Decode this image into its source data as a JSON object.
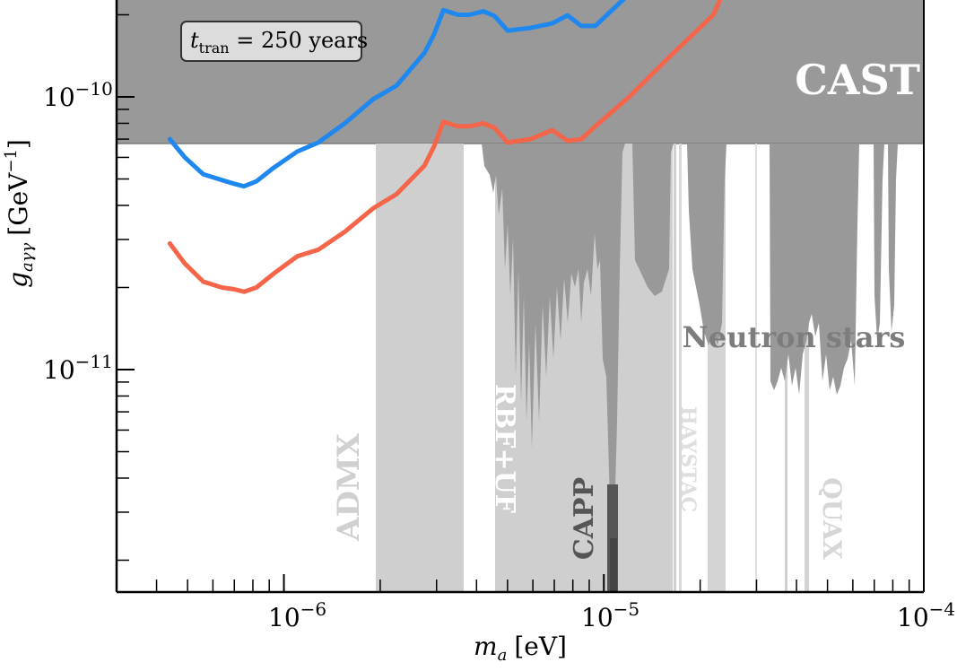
{
  "chart_data": {
    "type": "line",
    "xscale": "log",
    "yscale": "log",
    "xlim": [
      3e-07,
      0.0001
    ],
    "ylim": [
      1.6e-12,
      2.8e-10
    ],
    "xlabel": {
      "var": "m",
      "sub": "a",
      "unit": "[eV]"
    },
    "ylabel": {
      "var": "g",
      "sub": "aγγ",
      "unit": "[GeV",
      "exp": "−1",
      "close": "]"
    },
    "x_tick_labels": [
      {
        "value": 1e-06,
        "base": "10",
        "exp": "−6"
      },
      {
        "value": 1e-05,
        "base": "10",
        "exp": "−5"
      },
      {
        "value": 0.0001,
        "base": "10",
        "exp": "−4"
      }
    ],
    "y_tick_labels": [
      {
        "value": 1e-10,
        "base": "10",
        "exp": "−10"
      },
      {
        "value": 1e-11,
        "base": "10",
        "exp": "−11"
      }
    ],
    "annotation_box": {
      "var": "t",
      "sub": "tran",
      "text": " = 250 years"
    },
    "series": [
      {
        "color": "#1e88f0",
        "x": [
          4.4e-07,
          4.9e-07,
          5.6e-07,
          6.4e-07,
          7e-07,
          7.5e-07,
          8.2e-07,
          9.3e-07,
          1.1e-06,
          1.28e-06,
          1.55e-06,
          1.9e-06,
          2.25e-06,
          2.75e-06,
          2.95e-06,
          3.15e-06,
          3.5e-06,
          3.8e-06,
          4.2e-06,
          4.55e-06,
          5e-06,
          5.9e-06,
          6.9e-06,
          7.7e-06,
          8.5e-06,
          9.4e-06,
          1.07e-05,
          1.23e-05
        ],
        "y": [
          7e-11,
          6e-11,
          5.2e-11,
          4.95e-11,
          4.8e-11,
          4.7e-11,
          4.9e-11,
          5.5e-11,
          6.3e-11,
          6.8e-11,
          8e-11,
          9.8e-11,
          1.1e-10,
          1.45e-10,
          1.7e-10,
          2.08e-10,
          2e-10,
          2e-10,
          2.06e-10,
          1.98e-10,
          1.75e-10,
          1.79e-10,
          1.86e-10,
          1.99e-10,
          1.82e-10,
          1.82e-10,
          2.1e-10,
          2.45e-10
        ]
      },
      {
        "color": "#f4654a",
        "x": [
          4.4e-07,
          4.9e-07,
          5.6e-07,
          6.4e-07,
          7e-07,
          7.5e-07,
          8.2e-07,
          9.3e-07,
          1.1e-06,
          1.28e-06,
          1.55e-06,
          1.9e-06,
          2.25e-06,
          2.75e-06,
          2.95e-06,
          3.15e-06,
          3.5e-06,
          3.8e-06,
          4.2e-06,
          4.55e-06,
          5e-06,
          5.9e-06,
          6.9e-06,
          7.7e-06,
          8.5e-06,
          9.4e-06,
          1.2e-05,
          1.6e-05,
          2.2e-05,
          2.5e-05
        ],
        "y": [
          2.9e-11,
          2.45e-11,
          2.1e-11,
          2e-11,
          1.97e-11,
          1.93e-11,
          2e-11,
          2.25e-11,
          2.6e-11,
          2.75e-11,
          3.2e-11,
          3.9e-11,
          4.4e-11,
          5.6e-11,
          6.6e-11,
          8.1e-11,
          7.8e-11,
          7.8e-11,
          8e-11,
          7.7e-11,
          6.8e-11,
          7e-11,
          7.55e-11,
          6.9e-11,
          7e-11,
          7.8e-11,
          1e-10,
          1.4e-10,
          2e-10,
          2.8e-10
        ]
      }
    ],
    "regions": [
      {
        "label": "CAST",
        "color": "#999999",
        "x": [
          3e-07,
          0.0001
        ],
        "y": [
          6.6e-11,
          2.8e-10
        ]
      },
      {
        "label": "ADMX",
        "color": "#cfcfcf",
        "x": [
          1.95e-06,
          3.65e-06
        ],
        "y": [
          1.6e-12,
          6.6e-11
        ]
      },
      {
        "label": "RBF+UF",
        "color": "#cfcfcf",
        "x": [
          4.6e-06,
          1.65e-05
        ],
        "y": [
          1.6e-12,
          6.6e-11
        ]
      },
      {
        "label": "HAYSTAC",
        "color": "#d4d4d4",
        "x": [
          2.15e-05,
          2.42e-05
        ],
        "y": [
          1.6e-12,
          6.6e-11
        ]
      },
      {
        "label": "CAPP",
        "color": "#555555",
        "x": [
          1.05e-05,
          1.1e-05
        ],
        "y": [
          1.6e-12,
          6.6e-11
        ]
      },
      {
        "label": "QUAX",
        "color": "#d4d4d4",
        "x": [
          4.3e-05,
          4.5e-05
        ],
        "y": [
          1.6e-12,
          6.6e-11
        ]
      },
      {
        "label": "Neutron stars",
        "color": "#999999",
        "x": [
          5e-06,
          8.5e-05
        ],
        "y": [
          8e-12,
          6.6e-11
        ]
      }
    ]
  }
}
